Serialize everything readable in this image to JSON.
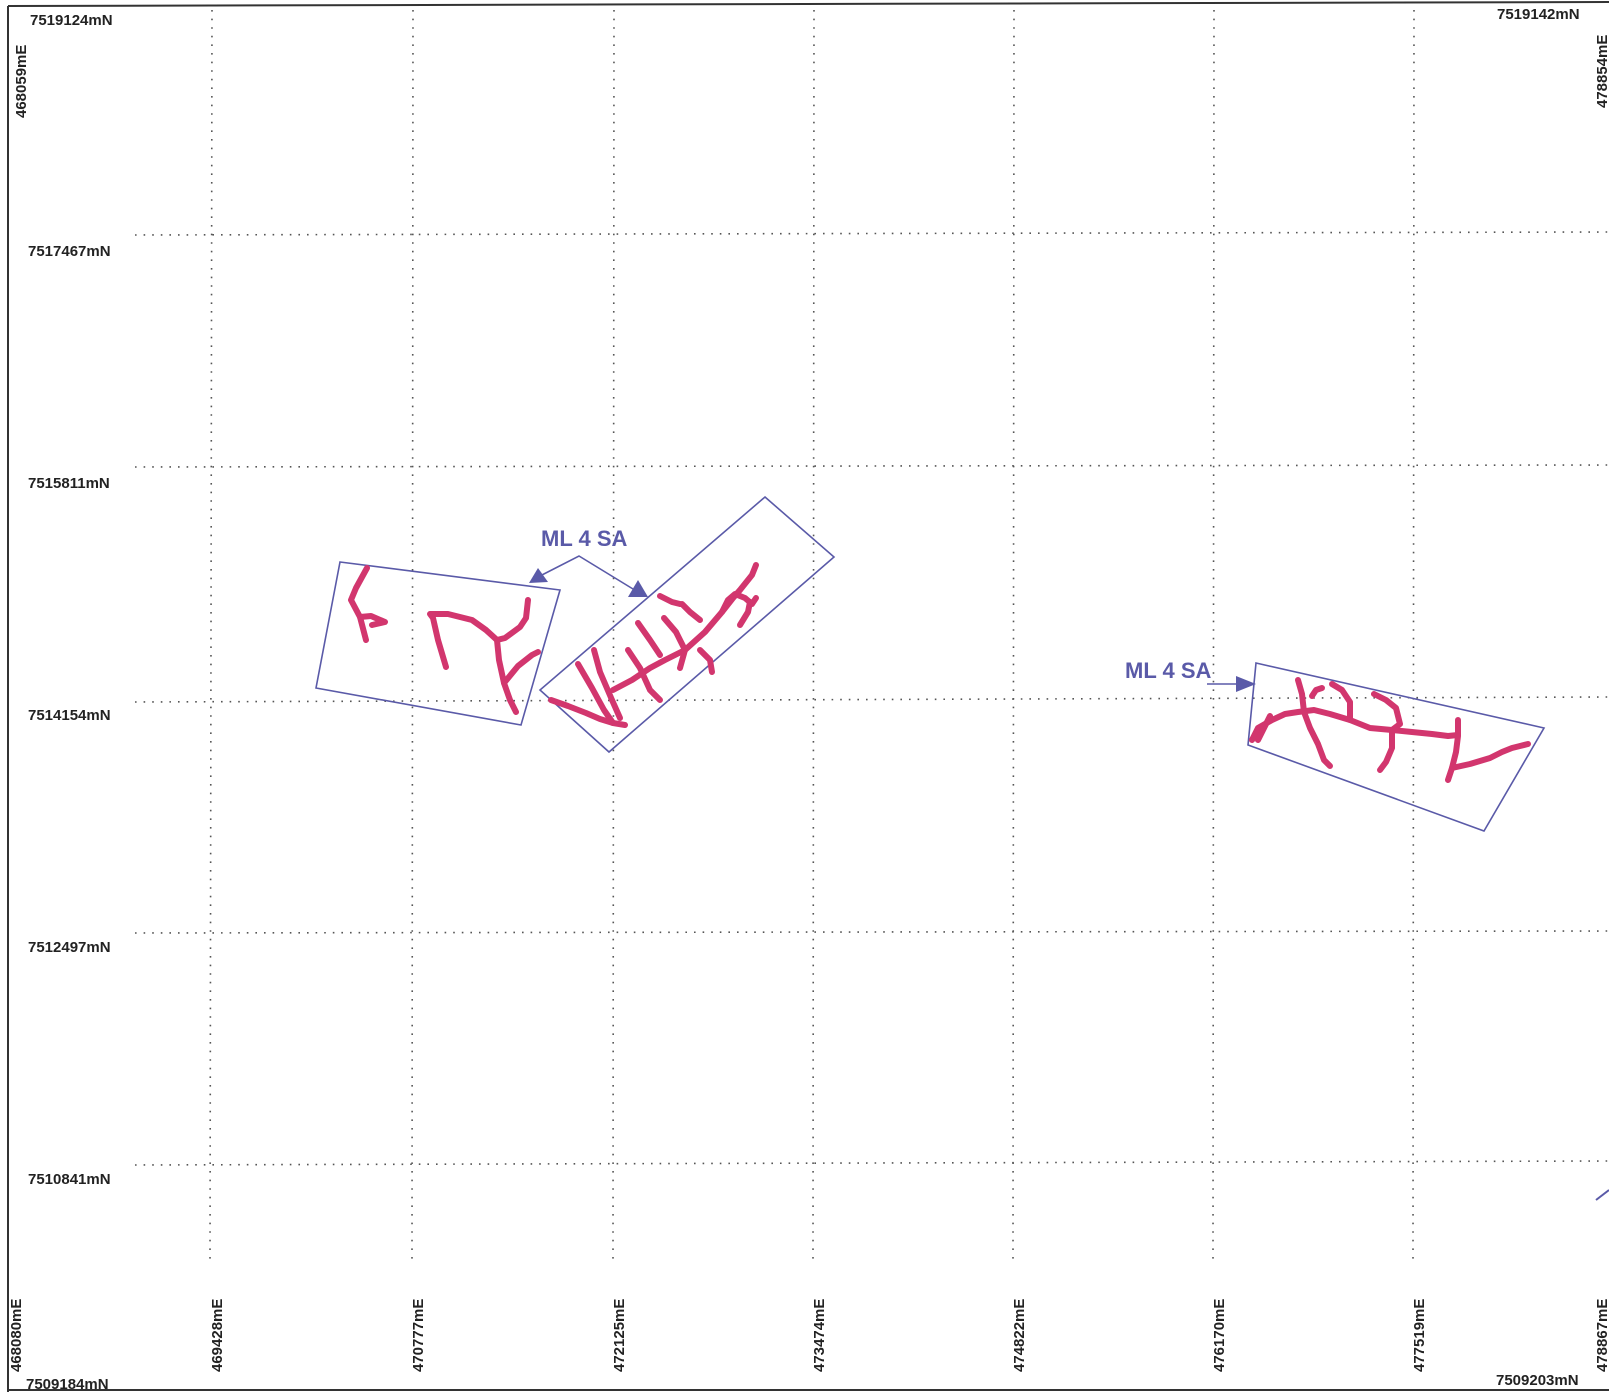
{
  "colors": {
    "grid": "#555555",
    "frame": "#333333",
    "boundary": "#5a5aa8",
    "tracks": "#d2366e",
    "callout": "#5a5aa8",
    "label": "#222222"
  },
  "northing_labels": {
    "top_left": "7519124mN",
    "top_right": "7519142mN",
    "bottom_left": "7509184mN",
    "bottom_right": "7509203mN",
    "rows": [
      "7517467mN",
      "7515811mN",
      "7514154mN",
      "7512497mN",
      "7510841mN"
    ]
  },
  "easting_labels": {
    "top_left": "468059mE",
    "top_right": "478854mE",
    "bottom_left": "468080mE",
    "bottom_right": "478867mE",
    "columns": [
      "469428mE",
      "470777mE",
      "472125mE",
      "473474mE",
      "474822mE",
      "476170mE",
      "477519mE"
    ]
  },
  "callouts": [
    {
      "text": "ML 4 SA"
    },
    {
      "text": "ML 4 SA"
    }
  ]
}
